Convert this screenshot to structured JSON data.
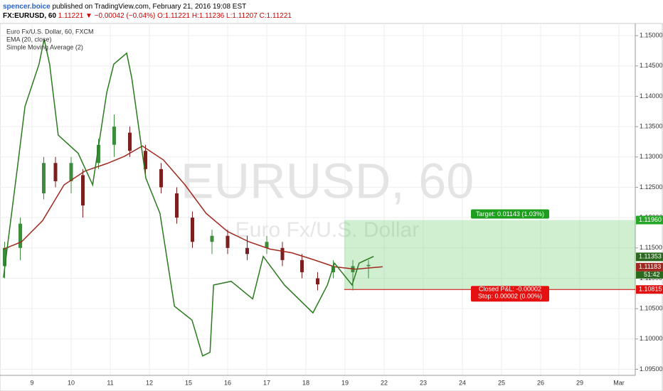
{
  "header": {
    "author": "spencer.boice",
    "published": "published on TradingView.com, February 21, 2016 19:08 EST",
    "symbol": "FX:EURUSD, 60",
    "last": "1.11221",
    "arrow": "▼",
    "change": "−0.00042 (−0.04%)",
    "open": "O:1.11221",
    "high": "H:1.11236",
    "low": "L:1.11207",
    "close": "C:1.11221"
  },
  "chart_data": {
    "type": "candlestick",
    "legend": [
      "Euro Fx/U.S. Dollar, 60, FXCM",
      "EMA (20, close)",
      "Simple Moving Average (2)"
    ],
    "watermark": [
      "EURUSD, 60",
      "Euro Fx/U.S. Dollar"
    ],
    "xlim": [
      -0.818,
      15.418
    ],
    "xticks": [
      {
        "value": 0,
        "label": "9"
      },
      {
        "value": 1,
        "label": "10"
      },
      {
        "value": 2,
        "label": "11"
      },
      {
        "value": 3,
        "label": "12"
      },
      {
        "value": 4,
        "label": "15"
      },
      {
        "value": 5,
        "label": "16"
      },
      {
        "value": 6,
        "label": "17"
      },
      {
        "value": 7,
        "label": "18"
      },
      {
        "value": 8,
        "label": "19"
      },
      {
        "value": 9,
        "label": "22"
      },
      {
        "value": 10,
        "label": "23"
      },
      {
        "value": 11,
        "label": "24"
      },
      {
        "value": 12,
        "label": "25"
      },
      {
        "value": 13,
        "label": "26"
      },
      {
        "value": 14,
        "label": "29"
      },
      {
        "value": 15,
        "label": "Mar"
      }
    ],
    "ylim": [
      1.094,
      1.152
    ],
    "yticks": [
      {
        "value": 1.095,
        "label": "1.09500"
      },
      {
        "value": 1.1,
        "label": "1.10000"
      },
      {
        "value": 1.105,
        "label": "1.10500"
      },
      {
        "value": 1.11,
        "label": "1.11000"
      },
      {
        "value": 1.115,
        "label": "1.11500"
      },
      {
        "value": 1.12,
        "label": "1.12000"
      },
      {
        "value": 1.125,
        "label": "1.12500"
      },
      {
        "value": 1.13,
        "label": "1.13000"
      },
      {
        "value": 1.135,
        "label": "1.13500"
      },
      {
        "value": 1.14,
        "label": "1.14000"
      },
      {
        "value": 1.145,
        "label": "1.14500"
      },
      {
        "value": 1.15,
        "label": "1.15000"
      }
    ],
    "grid": true,
    "up_color": "#3d8b3d",
    "down_color": "#7b1f1f",
    "candles": {
      "x": [
        -0.7,
        -0.3,
        0.3,
        0.6,
        1.0,
        1.3,
        1.7,
        2.1,
        2.5,
        2.9,
        3.3,
        3.7,
        4.1,
        4.6,
        5.0,
        5.5,
        6.0,
        6.4,
        6.9,
        7.3,
        7.7,
        8.2,
        8.6
      ],
      "open": [
        1.112,
        1.115,
        1.124,
        1.129,
        1.126,
        1.127,
        1.129,
        1.132,
        1.134,
        1.131,
        1.128,
        1.124,
        1.12,
        1.116,
        1.117,
        1.115,
        1.115,
        1.115,
        1.113,
        1.11,
        1.111,
        1.111,
        1.112
      ],
      "high": [
        1.116,
        1.12,
        1.13,
        1.13,
        1.13,
        1.128,
        1.133,
        1.137,
        1.135,
        1.132,
        1.129,
        1.125,
        1.121,
        1.118,
        1.118,
        1.117,
        1.117,
        1.116,
        1.114,
        1.111,
        1.113,
        1.113,
        1.113
      ],
      "low": [
        1.11,
        1.113,
        1.123,
        1.125,
        1.124,
        1.12,
        1.128,
        1.13,
        1.13,
        1.127,
        1.124,
        1.119,
        1.115,
        1.114,
        1.114,
        1.113,
        1.114,
        1.112,
        1.11,
        1.108,
        1.11,
        1.108,
        1.11
      ],
      "close": [
        1.115,
        1.119,
        1.129,
        1.126,
        1.129,
        1.122,
        1.132,
        1.135,
        1.131,
        1.128,
        1.125,
        1.12,
        1.116,
        1.117,
        1.115,
        1.114,
        1.116,
        1.113,
        1.111,
        1.109,
        1.112,
        1.112,
        1.1122
      ]
    },
    "series": [
      {
        "name": "EMA (20, close)",
        "color": "#a0281e",
        "x": [
          -0.73,
          -0.27,
          0.27,
          0.82,
          1.36,
          1.91,
          2.36,
          2.82,
          3.36,
          3.91,
          4.45,
          5.0,
          5.55,
          6.09,
          6.64,
          7.18,
          7.73,
          8.27,
          8.96
        ],
        "values": [
          1.1148,
          1.116,
          1.1195,
          1.1254,
          1.1277,
          1.1289,
          1.1301,
          1.1318,
          1.1295,
          1.1254,
          1.1207,
          1.1177,
          1.116,
          1.1148,
          1.1142,
          1.1131,
          1.1119,
          1.1115,
          1.1119
        ]
      },
      {
        "name": "Simple Moving Average (2)",
        "color": "#2a7a1e",
        "x": [
          -0.73,
          -0.36,
          -0.18,
          0.18,
          0.31,
          0.45,
          0.67,
          1.18,
          1.55,
          1.91,
          2.09,
          2.42,
          2.55,
          2.91,
          3.27,
          3.64,
          4.09,
          4.36,
          4.55,
          4.64,
          5.09,
          5.64,
          5.91,
          6.45,
          7.18,
          7.55,
          7.73,
          8.18,
          8.36,
          8.73
        ],
        "values": [
          1.1101,
          1.1289,
          1.1383,
          1.1453,
          1.1494,
          1.1453,
          1.1336,
          1.1306,
          1.1254,
          1.1406,
          1.1453,
          1.1471,
          1.143,
          1.1265,
          1.1207,
          1.1054,
          1.1031,
          1.0972,
          1.0978,
          1.1089,
          1.1095,
          1.1066,
          1.1136,
          1.1089,
          1.1043,
          1.1089,
          1.1125,
          1.1089,
          1.1125,
          1.1136
        ]
      }
    ],
    "position": {
      "start": 7.98,
      "target": 1.1196,
      "stop": 1.10815,
      "target_label": "Target: 0.01143 (1.03%)",
      "closed_label": "Closed P&L: -0.00002",
      "stop_label": "Stop: 0.00002 (0.00%)"
    },
    "price_labels": [
      {
        "value": 1.1196,
        "label": "1.11960",
        "color": "#26a626"
      },
      {
        "value": 1.11353,
        "label": "1.11353",
        "color": "#2a6a1e"
      },
      {
        "value": 1.11183,
        "label": "1.11183",
        "color": "#a0281e"
      },
      {
        "value": 1.10815,
        "label": "1.10815",
        "color": "#e01010"
      }
    ],
    "countdown": "51:42"
  }
}
